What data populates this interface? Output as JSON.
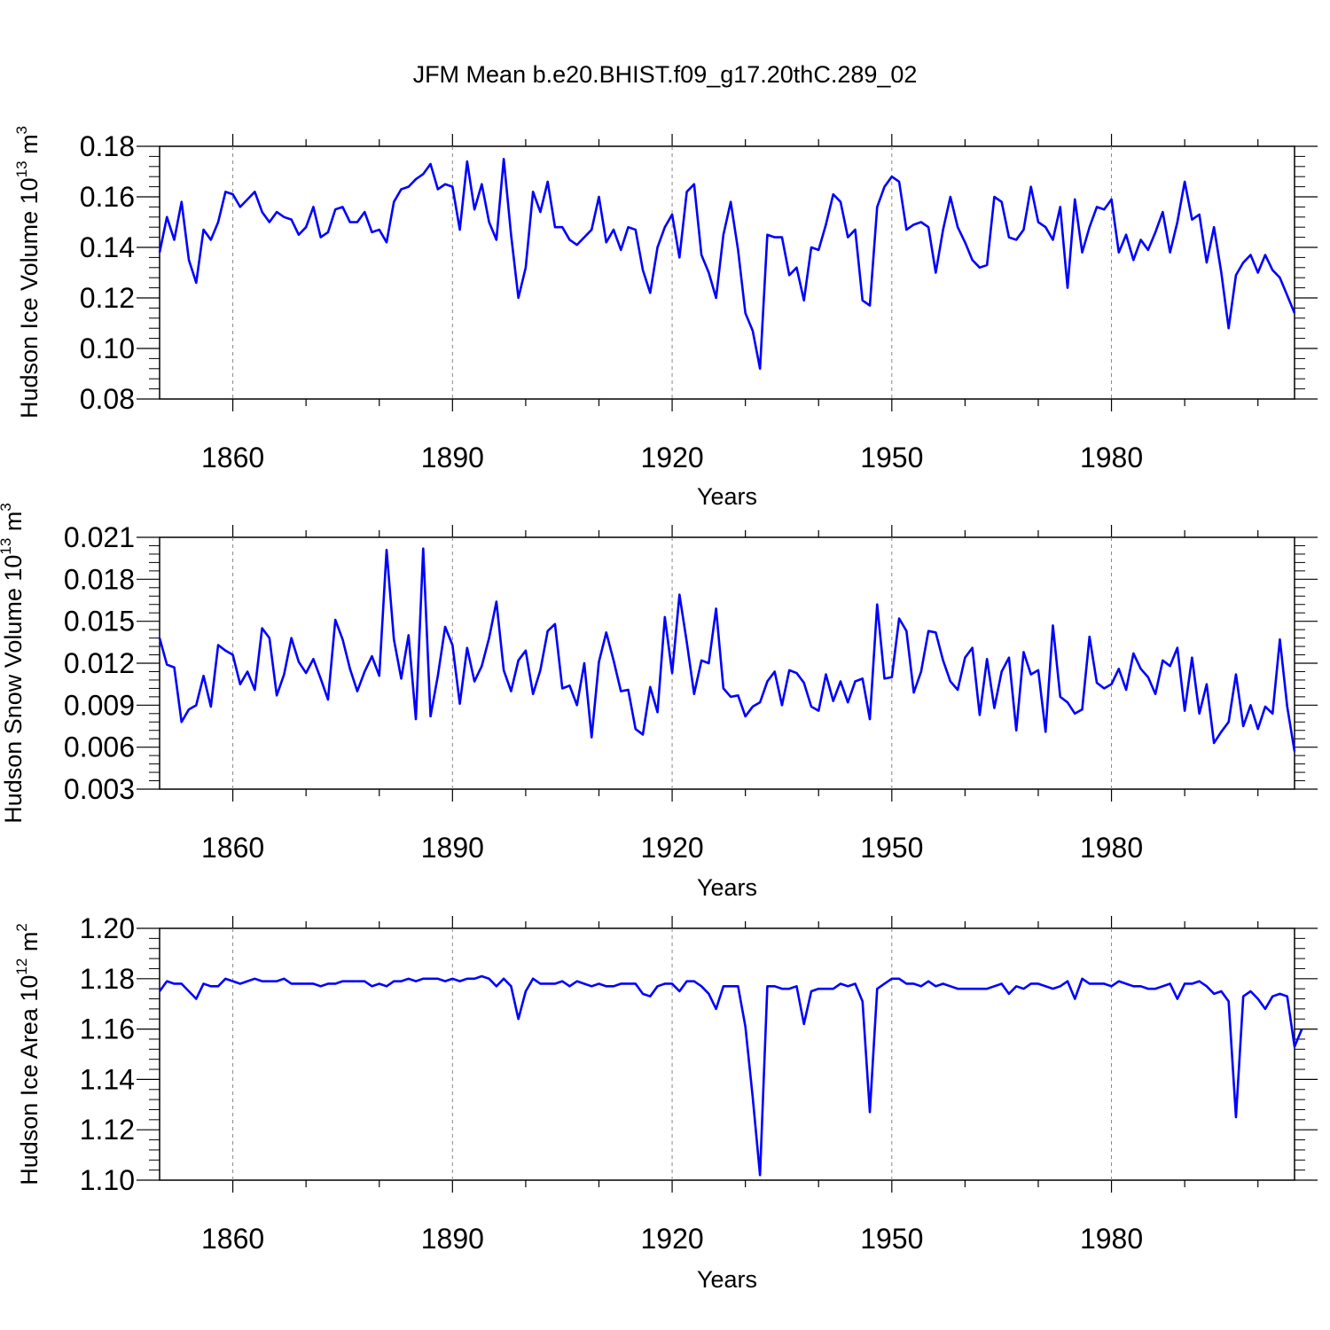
{
  "title": "JFM Mean b.e20.BHIST.f09_g17.20thC.289_02",
  "colors": {
    "line": "#0000ff",
    "axis": "#000000",
    "grid": "#888888"
  },
  "chart_data": [
    {
      "type": "line",
      "ylabel": "Hudson Ice Volume 10",
      "ylabel_exp": "13",
      "ylabel_unit": " m",
      "ylabel_unit_exp": "3",
      "xlabel": "Years",
      "xlim": [
        1850,
        2005
      ],
      "ylim": [
        0.08,
        0.18
      ],
      "xticks": [
        1860,
        1890,
        1920,
        1950,
        1980
      ],
      "xticklabels": [
        "1860",
        "1890",
        "1920",
        "1950",
        "1980"
      ],
      "yticks": [
        0.08,
        0.1,
        0.12,
        0.14,
        0.16,
        0.18
      ],
      "yticklabels": [
        "0.08",
        "0.10",
        "0.12",
        "0.14",
        "0.16",
        "0.18"
      ],
      "y_minor_step": 0.004,
      "x0": 1850,
      "values": [
        0.138,
        0.152,
        0.143,
        0.158,
        0.135,
        0.126,
        0.147,
        0.143,
        0.15,
        0.162,
        0.161,
        0.156,
        0.159,
        0.162,
        0.154,
        0.15,
        0.154,
        0.152,
        0.151,
        0.145,
        0.148,
        0.156,
        0.144,
        0.146,
        0.155,
        0.156,
        0.15,
        0.15,
        0.154,
        0.146,
        0.147,
        0.142,
        0.158,
        0.163,
        0.164,
        0.167,
        0.169,
        0.173,
        0.163,
        0.165,
        0.164,
        0.147,
        0.174,
        0.155,
        0.165,
        0.15,
        0.143,
        0.175,
        0.145,
        0.12,
        0.132,
        0.162,
        0.154,
        0.166,
        0.148,
        0.148,
        0.143,
        0.141,
        0.144,
        0.147,
        0.16,
        0.142,
        0.147,
        0.139,
        0.148,
        0.147,
        0.131,
        0.122,
        0.14,
        0.148,
        0.153,
        0.136,
        0.162,
        0.165,
        0.137,
        0.13,
        0.12,
        0.145,
        0.158,
        0.139,
        0.114,
        0.107,
        0.092,
        0.145,
        0.144,
        0.144,
        0.129,
        0.132,
        0.119,
        0.14,
        0.139,
        0.149,
        0.161,
        0.158,
        0.144,
        0.147,
        0.119,
        0.117,
        0.156,
        0.164,
        0.168,
        0.166,
        0.147,
        0.149,
        0.15,
        0.148,
        0.13,
        0.147,
        0.16,
        0.148,
        0.142,
        0.135,
        0.132,
        0.133,
        0.16,
        0.158,
        0.144,
        0.143,
        0.147,
        0.164,
        0.15,
        0.148,
        0.143,
        0.156,
        0.124,
        0.159,
        0.138,
        0.148,
        0.156,
        0.155,
        0.159,
        0.138,
        0.145,
        0.135,
        0.143,
        0.139,
        0.146,
        0.154,
        0.138,
        0.15,
        0.166,
        0.151,
        0.153,
        0.134,
        0.148,
        0.13,
        0.108,
        0.129,
        0.134,
        0.137,
        0.13,
        0.137,
        0.131,
        0.128,
        0.121,
        0.114
      ]
    },
    {
      "type": "line",
      "ylabel": "Hudson Snow Volume 10",
      "ylabel_exp": "13",
      "ylabel_unit": " m",
      "ylabel_unit_exp": "3",
      "xlabel": "Years",
      "xlim": [
        1850,
        2005
      ],
      "ylim": [
        0.003,
        0.021
      ],
      "xticks": [
        1860,
        1890,
        1920,
        1950,
        1980
      ],
      "xticklabels": [
        "1860",
        "1890",
        "1920",
        "1950",
        "1980"
      ],
      "yticks": [
        0.003,
        0.006,
        0.009,
        0.012,
        0.015,
        0.018,
        0.021
      ],
      "yticklabels": [
        "0.003",
        "0.006",
        "0.009",
        "0.012",
        "0.015",
        "0.018",
        "0.021"
      ],
      "y_minor_step": 0.0006,
      "x0": 1850,
      "values": [
        0.0138,
        0.0119,
        0.0117,
        0.0078,
        0.0087,
        0.009,
        0.0111,
        0.0089,
        0.0133,
        0.0129,
        0.0126,
        0.0105,
        0.0114,
        0.0101,
        0.0145,
        0.0138,
        0.0097,
        0.0112,
        0.0138,
        0.0121,
        0.0113,
        0.0123,
        0.0109,
        0.0094,
        0.0151,
        0.0137,
        0.0116,
        0.01,
        0.0114,
        0.0125,
        0.0111,
        0.0201,
        0.0137,
        0.0109,
        0.014,
        0.008,
        0.0202,
        0.0082,
        0.0111,
        0.0146,
        0.0133,
        0.0091,
        0.0131,
        0.0107,
        0.0118,
        0.0138,
        0.0164,
        0.0115,
        0.01,
        0.0122,
        0.0129,
        0.0098,
        0.0115,
        0.0143,
        0.0148,
        0.0102,
        0.0104,
        0.009,
        0.012,
        0.0067,
        0.0121,
        0.0142,
        0.0122,
        0.01,
        0.0101,
        0.0073,
        0.0069,
        0.0103,
        0.0085,
        0.0153,
        0.0113,
        0.0169,
        0.0135,
        0.0098,
        0.0122,
        0.012,
        0.0159,
        0.0102,
        0.0096,
        0.0097,
        0.0082,
        0.0089,
        0.0092,
        0.0107,
        0.0114,
        0.009,
        0.0115,
        0.0113,
        0.0106,
        0.0089,
        0.0086,
        0.0112,
        0.0093,
        0.0107,
        0.0092,
        0.0107,
        0.0109,
        0.008,
        0.0162,
        0.0109,
        0.011,
        0.0152,
        0.0143,
        0.0099,
        0.0114,
        0.0143,
        0.0142,
        0.0122,
        0.0107,
        0.0101,
        0.0124,
        0.0131,
        0.0083,
        0.0123,
        0.0088,
        0.0114,
        0.0124,
        0.0072,
        0.0128,
        0.0112,
        0.0115,
        0.0071,
        0.0147,
        0.0096,
        0.0092,
        0.0084,
        0.0087,
        0.0139,
        0.0106,
        0.0102,
        0.0105,
        0.0116,
        0.0101,
        0.0127,
        0.0116,
        0.011,
        0.0098,
        0.0122,
        0.0118,
        0.0131,
        0.0086,
        0.0124,
        0.0084,
        0.0105,
        0.0063,
        0.0071,
        0.0078,
        0.0112,
        0.0075,
        0.009,
        0.0073,
        0.0089,
        0.0084,
        0.0137,
        0.0089,
        0.0057
      ]
    },
    {
      "type": "line",
      "ylabel": "Hudson Ice Area 10",
      "ylabel_exp": "12",
      "ylabel_unit": " m",
      "ylabel_unit_exp": "2",
      "xlabel": "Years",
      "xlim": [
        1850,
        2005
      ],
      "ylim": [
        1.1,
        1.2
      ],
      "xticks": [
        1860,
        1890,
        1920,
        1950,
        1980
      ],
      "xticklabels": [
        "1860",
        "1890",
        "1920",
        "1950",
        "1980"
      ],
      "yticks": [
        1.1,
        1.12,
        1.14,
        1.16,
        1.18,
        1.2
      ],
      "yticklabels": [
        "1.10",
        "1.12",
        "1.14",
        "1.16",
        "1.18",
        "1.20"
      ],
      "y_minor_step": 0.004,
      "x0": 1850,
      "values": [
        1.175,
        1.179,
        1.178,
        1.178,
        1.175,
        1.172,
        1.178,
        1.177,
        1.177,
        1.18,
        1.179,
        1.178,
        1.179,
        1.18,
        1.179,
        1.179,
        1.179,
        1.18,
        1.178,
        1.178,
        1.178,
        1.178,
        1.177,
        1.178,
        1.178,
        1.179,
        1.179,
        1.179,
        1.179,
        1.177,
        1.178,
        1.177,
        1.179,
        1.179,
        1.18,
        1.179,
        1.18,
        1.18,
        1.18,
        1.179,
        1.18,
        1.179,
        1.18,
        1.18,
        1.181,
        1.18,
        1.177,
        1.18,
        1.177,
        1.164,
        1.175,
        1.18,
        1.178,
        1.178,
        1.178,
        1.179,
        1.177,
        1.179,
        1.178,
        1.177,
        1.178,
        1.177,
        1.177,
        1.178,
        1.178,
        1.178,
        1.174,
        1.173,
        1.177,
        1.178,
        1.178,
        1.175,
        1.179,
        1.179,
        1.177,
        1.174,
        1.168,
        1.177,
        1.177,
        1.177,
        1.161,
        1.133,
        1.102,
        1.177,
        1.177,
        1.176,
        1.176,
        1.177,
        1.162,
        1.175,
        1.176,
        1.176,
        1.176,
        1.178,
        1.177,
        1.178,
        1.171,
        1.127,
        1.176,
        1.178,
        1.18,
        1.18,
        1.178,
        1.178,
        1.177,
        1.179,
        1.177,
        1.178,
        1.177,
        1.176,
        1.176,
        1.176,
        1.176,
        1.176,
        1.177,
        1.178,
        1.174,
        1.177,
        1.176,
        1.178,
        1.178,
        1.177,
        1.176,
        1.177,
        1.179,
        1.172,
        1.18,
        1.178,
        1.178,
        1.178,
        1.177,
        1.179,
        1.178,
        1.177,
        1.177,
        1.176,
        1.176,
        1.177,
        1.178,
        1.172,
        1.178,
        1.178,
        1.179,
        1.177,
        1.174,
        1.175,
        1.171,
        1.125,
        1.173,
        1.175,
        1.172,
        1.168,
        1.173,
        1.174,
        1.173,
        1.153,
        1.16
      ]
    }
  ]
}
